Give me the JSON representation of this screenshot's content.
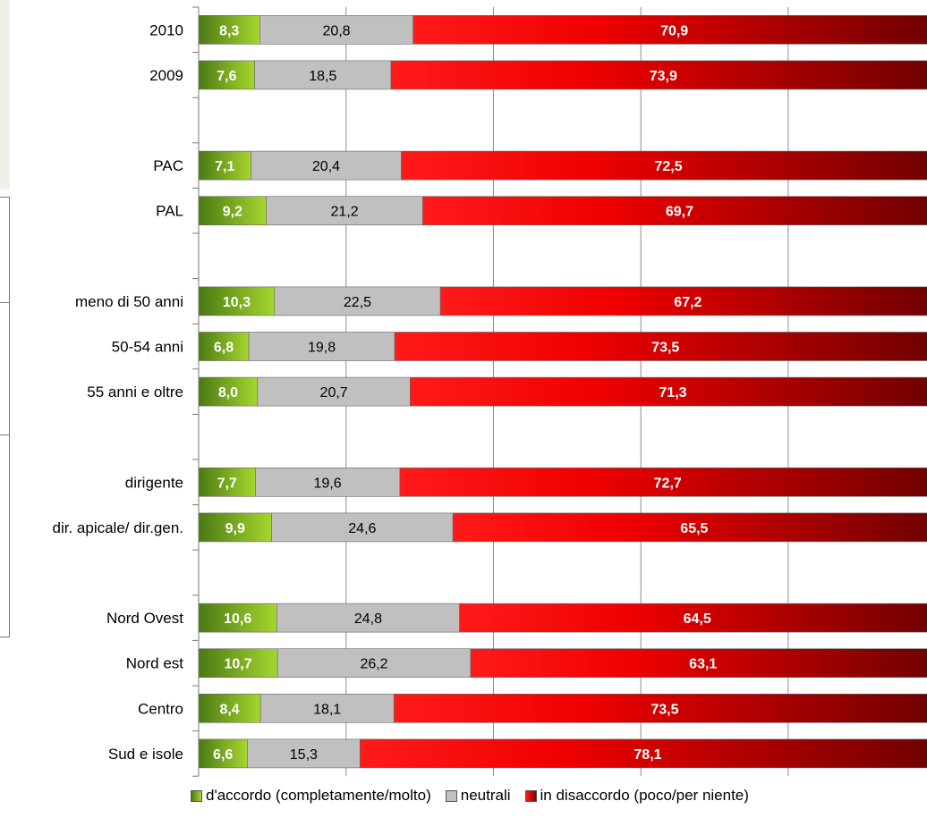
{
  "chart_data": {
    "type": "bar",
    "stacked": true,
    "orientation": "horizontal",
    "xlim": [
      0,
      100
    ],
    "grid": true,
    "legend_position": "bottom",
    "categories": [
      "2010",
      "2009",
      "",
      "PAC",
      "PAL",
      "",
      "meno di 50 anni",
      "50-54 anni",
      "55 anni e oltre",
      "",
      "dirigente",
      "dir. apicale/ dir.gen.",
      "",
      "Nord Ovest",
      "Nord est",
      "Centro",
      "Sud e isole"
    ],
    "series": [
      {
        "name": "d'accordo (completamente/molto)",
        "color": "#6aa51c",
        "values": [
          8.3,
          7.6,
          null,
          7.1,
          9.2,
          null,
          10.3,
          6.8,
          8.0,
          null,
          7.7,
          9.9,
          null,
          10.6,
          10.7,
          8.4,
          6.6
        ],
        "labels": [
          "8,3",
          "7,6",
          "",
          "7,1",
          "9,2",
          "",
          "10,3",
          "6,8",
          "8,0",
          "",
          "7,7",
          "9,9",
          "",
          "10,6",
          "10,7",
          "8,4",
          "6,6"
        ]
      },
      {
        "name": "neutrali",
        "color": "#c0c0c0",
        "values": [
          20.8,
          18.5,
          null,
          20.4,
          21.2,
          null,
          22.5,
          19.8,
          20.7,
          null,
          19.6,
          24.6,
          null,
          24.8,
          26.2,
          18.1,
          15.3
        ],
        "labels": [
          "20,8",
          "18,5",
          "",
          "20,4",
          "21,2",
          "",
          "22,5",
          "19,8",
          "20,7",
          "",
          "19,6",
          "24,6",
          "",
          "24,8",
          "26,2",
          "18,1",
          "15,3"
        ]
      },
      {
        "name": "in disaccordo (poco/per niente)",
        "color": "#ff0000",
        "values": [
          70.9,
          73.9,
          null,
          72.5,
          69.7,
          null,
          67.2,
          73.5,
          71.3,
          null,
          72.7,
          65.5,
          null,
          64.5,
          63.1,
          73.5,
          78.1
        ],
        "labels": [
          "70,9",
          "73,9",
          "",
          "72,5",
          "69,7",
          "",
          "67,2",
          "73,5",
          "71,3",
          "",
          "72,7",
          "65,5",
          "",
          "64,5",
          "63,1",
          "73,5",
          "78,1"
        ]
      }
    ]
  },
  "legend": {
    "items": [
      {
        "label": "d'accordo (completamente/molto)",
        "color": "#6aa51c"
      },
      {
        "label": "neutrali",
        "color": "#c0c0c0"
      },
      {
        "label": "in disaccordo (poco/per niente)",
        "color": "#ff0000"
      }
    ]
  }
}
